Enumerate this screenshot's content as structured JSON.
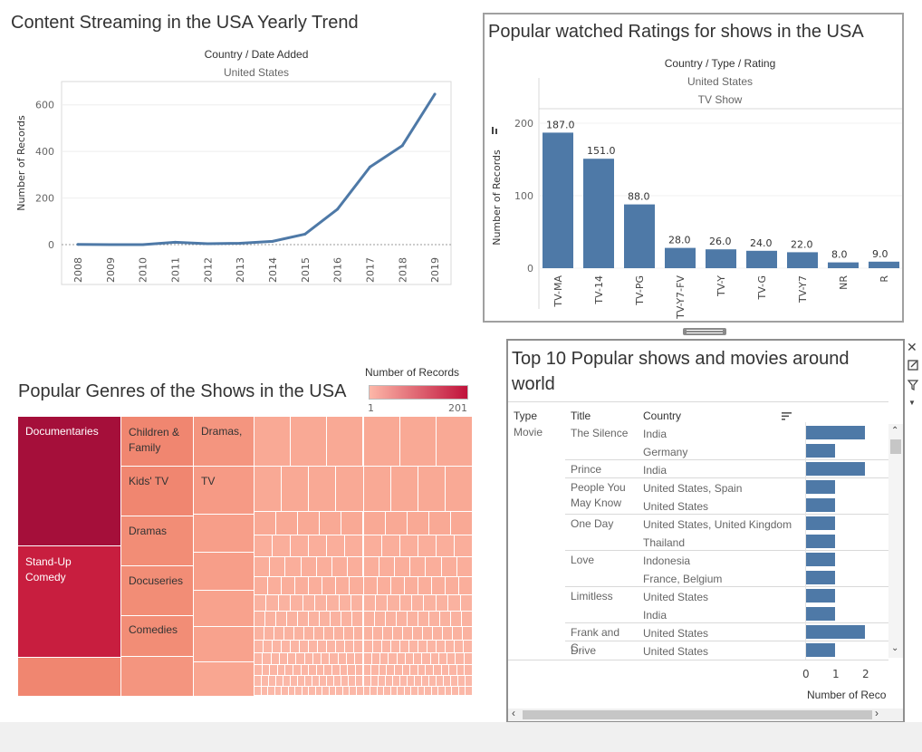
{
  "trend": {
    "title": "Content Streaming in the USA Yearly Trend",
    "header": "Country / Date Added",
    "subheader": "United States",
    "ylabel": "Number of Records"
  },
  "ratings": {
    "title": "Popular watched Ratings for shows in the USA",
    "header": "Country / Type / Rating",
    "subheader1": "United States",
    "subheader2": "TV Show",
    "ylabel": "Number of Records"
  },
  "genres": {
    "title": "Popular Genres of the Shows in the USA",
    "legend_title": "Number of Records",
    "legend_min": "1",
    "legend_max": "201",
    "labels": {
      "documentaries": "Documentaries",
      "children_family": "Children & Family",
      "dramas_comma": "Dramas,",
      "kids_tv": "Kids' TV",
      "tv": "TV",
      "dramas": "Dramas",
      "standup": "Stand-Up Comedy",
      "docuseries": "Docuseries",
      "comedies": "Comedies"
    }
  },
  "top10": {
    "title": "Top 10 Popular shows and movies around world",
    "col_type": "Type",
    "col_title": "Title",
    "col_country": "Country",
    "type_value": "Movie",
    "x_axis_label": "Number of Reco",
    "ticks": [
      "0",
      "1",
      "2"
    ],
    "rows": [
      {
        "title": "The Silence",
        "country": "India",
        "value": 2
      },
      {
        "title": "",
        "country": "Germany",
        "value": 1
      },
      {
        "title": "Prince",
        "country": "India",
        "value": 2
      },
      {
        "title": "People You May Know",
        "country": "United States, Spain",
        "value": 1
      },
      {
        "title": "",
        "country": "United States",
        "value": 1
      },
      {
        "title": "One Day",
        "country": "United States, United Kingdom",
        "value": 1
      },
      {
        "title": "",
        "country": "Thailand",
        "value": 1
      },
      {
        "title": "Love",
        "country": "Indonesia",
        "value": 1
      },
      {
        "title": "",
        "country": "France, Belgium",
        "value": 1
      },
      {
        "title": "Limitless",
        "country": "United States",
        "value": 1
      },
      {
        "title": "",
        "country": "India",
        "value": 1
      },
      {
        "title": "Frank and C..",
        "country": "United States",
        "value": 2
      },
      {
        "title": "Drive",
        "country": "United States",
        "value": 1
      }
    ]
  },
  "colors": {
    "bar": "#4e79a7",
    "dark_red": "#a50f3a",
    "red": "#c81e3f",
    "salmon": "#f08670",
    "light_salmon": "#f9a693",
    "pale": "#fbb4a4"
  },
  "chart_data": [
    {
      "type": "line",
      "title": "Content Streaming in the USA Yearly Trend",
      "xlabel": "",
      "ylabel": "Number of Records",
      "x": [
        "2008",
        "2009",
        "2010",
        "2011",
        "2012",
        "2013",
        "2014",
        "2015",
        "2016",
        "2017",
        "2018",
        "2019"
      ],
      "values": [
        1,
        0,
        0,
        10,
        4,
        6,
        14,
        45,
        152,
        333,
        425,
        646
      ],
      "ylim": [
        0,
        700
      ],
      "yticks": [
        "0",
        "200",
        "400",
        "600"
      ]
    },
    {
      "type": "bar",
      "title": "Popular watched Ratings for shows in the USA",
      "xlabel": "",
      "ylabel": "Number of Records",
      "categories": [
        "TV-MA",
        "TV-14",
        "TV-PG",
        "TV-Y7-FV",
        "TV-Y",
        "TV-G",
        "TV-Y7",
        "NR",
        "R"
      ],
      "values": [
        187,
        151,
        88,
        28,
        26,
        24,
        22,
        8,
        9
      ],
      "value_labels": [
        "187.0",
        "151.0",
        "88.0",
        "28.0",
        "26.0",
        "24.0",
        "22.0",
        "8.0",
        "9.0"
      ],
      "ylim": [
        0,
        220
      ],
      "yticks": [
        "0",
        "100",
        "200"
      ]
    }
  ]
}
